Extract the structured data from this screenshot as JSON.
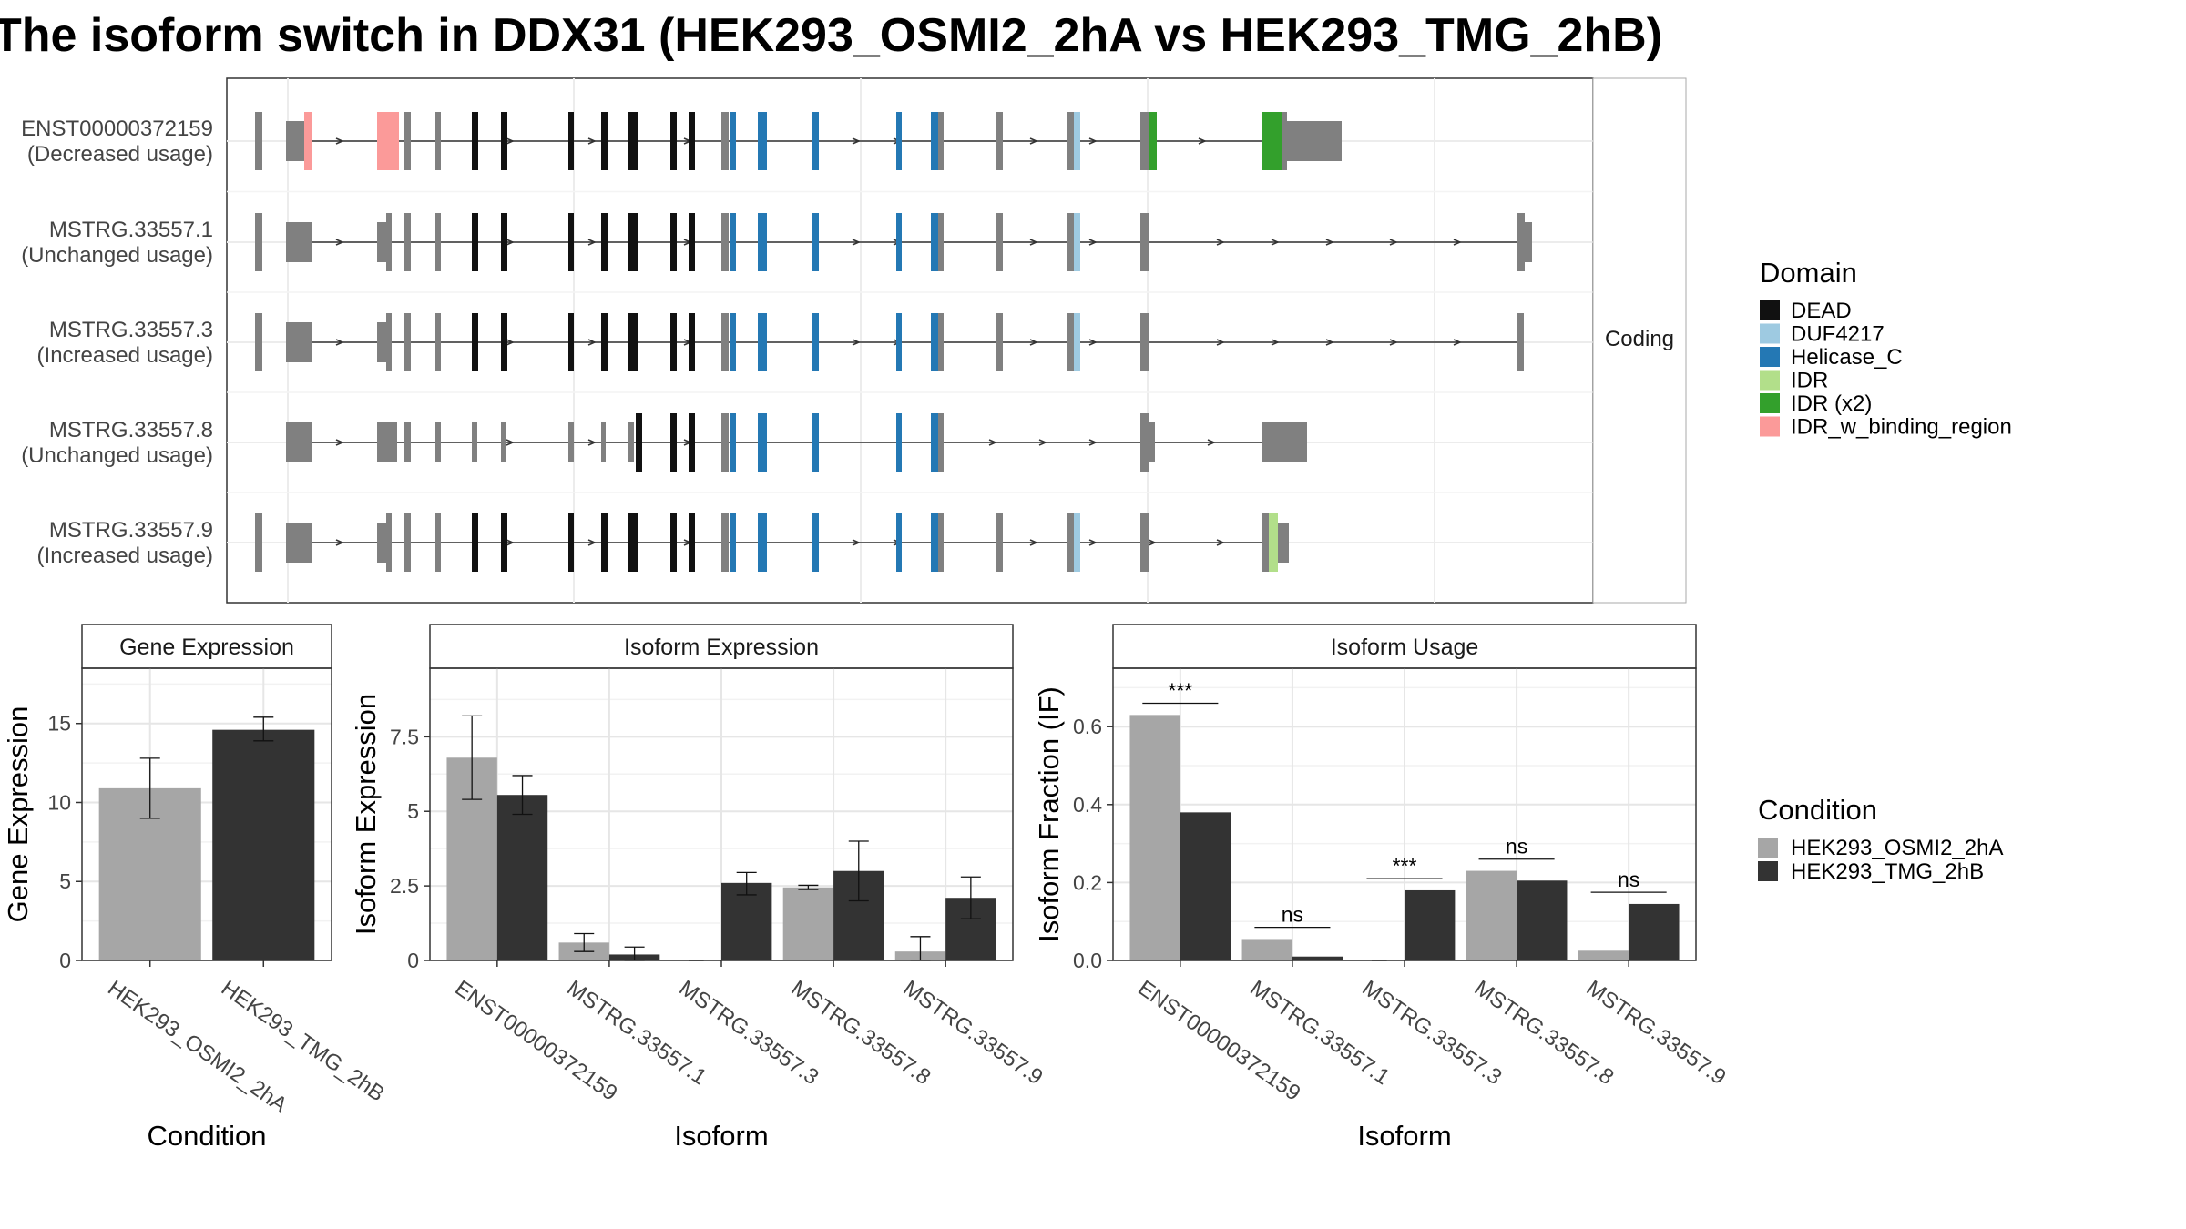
{
  "title": "The isoform switch in DDX31 (HEK293_OSMI2_2hA vs HEK293_TMG_2hB)",
  "colors": {
    "cond_a": "#A6A6A6",
    "cond_b": "#333333",
    "noncoding_exon": "#808080",
    "DEAD": "#111111",
    "DUF4217": "#9ECAE1",
    "Helicase_C": "#2478B4",
    "IDR": "#B2DF8A",
    "IDR (x2)": "#33A02C",
    "IDR_w_binding_region": "#FB9A99"
  },
  "transcripts": [
    {
      "id": "ENST00000372159",
      "usage": "(Decreased usage)"
    },
    {
      "id": "MSTRG.33557.1",
      "usage": "(Unchanged usage)"
    },
    {
      "id": "MSTRG.33557.3",
      "usage": "(Increased usage)"
    },
    {
      "id": "MSTRG.33557.8",
      "usage": "(Unchanged usage)"
    },
    {
      "id": "MSTRG.33557.9",
      "usage": "(Increased usage)"
    }
  ],
  "facet_label": "Coding",
  "domain_legend": {
    "title": "Domain",
    "items": [
      "DEAD",
      "DUF4217",
      "Helicase_C",
      "IDR",
      "IDR (x2)",
      "IDR_w_binding_region"
    ]
  },
  "condition_legend": {
    "title": "Condition",
    "items": [
      "HEK293_OSMI2_2hA",
      "HEK293_TMG_2hB"
    ]
  },
  "chart_data": [
    {
      "type": "bar",
      "title": "Gene Expression",
      "xlabel": "Condition",
      "ylabel": "Gene Expression",
      "categories": [
        "HEK293_OSMI2_2hA",
        "HEK293_TMG_2hB"
      ],
      "values": [
        10.9,
        14.6
      ],
      "error": [
        [
          9.0,
          12.8
        ],
        [
          13.9,
          15.4
        ]
      ],
      "ylim": [
        0,
        18.5
      ],
      "yticks": [
        0,
        5,
        10,
        15
      ]
    },
    {
      "type": "bar",
      "title": "Isoform Expression",
      "xlabel": "Isoform",
      "ylabel": "Isoform Expression",
      "categories": [
        "ENST00000372159",
        "MSTRG.33557.1",
        "MSTRG.33557.3",
        "MSTRG.33557.8",
        "MSTRG.33557.9"
      ],
      "series": [
        {
          "name": "HEK293_OSMI2_2hA",
          "values": [
            6.8,
            0.6,
            0.0,
            2.45,
            0.3
          ],
          "error": [
            [
              5.4,
              8.2
            ],
            [
              0.3,
              0.9
            ],
            [
              0.0,
              0.0
            ],
            [
              2.38,
              2.52
            ],
            [
              0.0,
              0.8
            ]
          ]
        },
        {
          "name": "HEK293_TMG_2hB",
          "values": [
            5.55,
            0.2,
            2.6,
            3.0,
            2.1
          ],
          "error": [
            [
              4.9,
              6.2
            ],
            [
              0.0,
              0.45
            ],
            [
              2.2,
              2.95
            ],
            [
              2.0,
              4.0
            ],
            [
              1.4,
              2.8
            ]
          ]
        }
      ],
      "ylim": [
        0,
        9.8
      ],
      "yticks": [
        0,
        2.5,
        5,
        7.5
      ]
    },
    {
      "type": "bar",
      "title": "Isoform Usage",
      "xlabel": "Isoform",
      "ylabel": "Isoform Fraction (IF)",
      "categories": [
        "ENST00000372159",
        "MSTRG.33557.1",
        "MSTRG.33557.3",
        "MSTRG.33557.8",
        "MSTRG.33557.9"
      ],
      "series": [
        {
          "name": "HEK293_OSMI2_2hA",
          "values": [
            0.63,
            0.055,
            0.0,
            0.23,
            0.025
          ]
        },
        {
          "name": "HEK293_TMG_2hB",
          "values": [
            0.38,
            0.01,
            0.18,
            0.205,
            0.145
          ]
        }
      ],
      "significance": [
        "***",
        "ns",
        "***",
        "ns",
        "ns"
      ],
      "sig_y": [
        0.66,
        0.085,
        0.21,
        0.26,
        0.175
      ],
      "ylim": [
        0,
        0.75
      ],
      "yticks": [
        0.0,
        0.2,
        0.4,
        0.6
      ]
    }
  ]
}
